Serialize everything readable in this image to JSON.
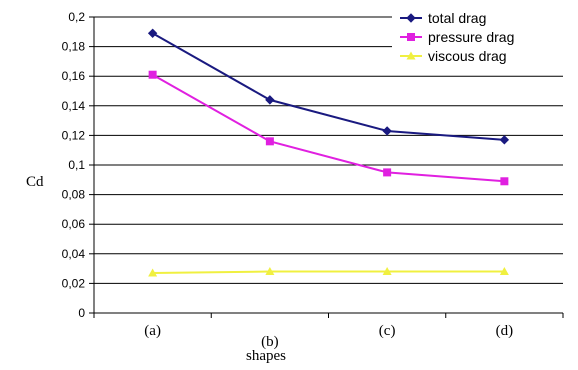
{
  "chart_data": {
    "type": "line",
    "categories": [
      "(a)",
      "(b)",
      "(c)",
      "(d)"
    ],
    "xlabel": "shapes",
    "ylabel": "Cd",
    "ylim": [
      0,
      0.2
    ],
    "yticks": [
      "0",
      "0,02",
      "0,04",
      "0,06",
      "0,08",
      "0,1",
      "0,12",
      "0,14",
      "0,16",
      "0,18",
      "0,2"
    ],
    "grid": "horizontal",
    "legend_position": "top-right",
    "series": [
      {
        "name": "total drag",
        "color": "#1a1a80",
        "marker": "diamond",
        "values": [
          0.189,
          0.144,
          0.123,
          0.117
        ]
      },
      {
        "name": "pressure drag",
        "color": "#e020e0",
        "marker": "square",
        "values": [
          0.161,
          0.116,
          0.095,
          0.089
        ]
      },
      {
        "name": "viscous drag",
        "color": "#f0f040",
        "marker": "triangle",
        "values": [
          0.027,
          0.028,
          0.028,
          0.028
        ]
      }
    ]
  }
}
